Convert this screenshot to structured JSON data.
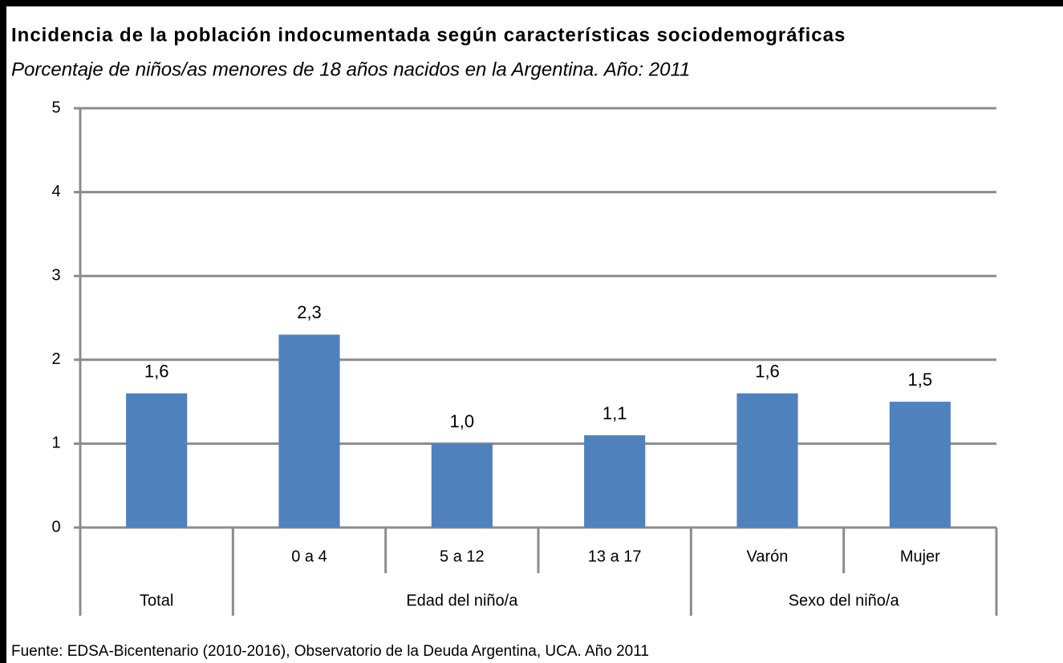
{
  "chart_data": {
    "type": "bar",
    "title": "Incidencia de la población indocumentada según características sociodemográficas",
    "subtitle": "Porcentaje de niños/as menores de 18 años nacidos en la Argentina. Año: 2011",
    "categories": [
      null,
      "0 a 4",
      "5 a 12",
      "13 a 17",
      "Varón",
      "Mujer"
    ],
    "groups": [
      {
        "label": "Total",
        "size": 1
      },
      {
        "label": "Edad del niño/a",
        "size": 3
      },
      {
        "label": "Sexo del niño/a",
        "size": 2
      }
    ],
    "values": [
      1.6,
      2.3,
      1.0,
      1.1,
      1.6,
      1.5
    ],
    "value_labels": [
      "1,6",
      "2,3",
      "1,0",
      "1,1",
      "1,6",
      "1,5"
    ],
    "color": "#4f81bd",
    "ylim": [
      0,
      5
    ],
    "yticks": [
      0,
      1,
      2,
      3,
      4,
      5
    ],
    "grid": true,
    "source": "Fuente: EDSA-Bicentenario (2010-2016), Observatorio de la Deuda Argentina, UCA. Año 2011"
  }
}
